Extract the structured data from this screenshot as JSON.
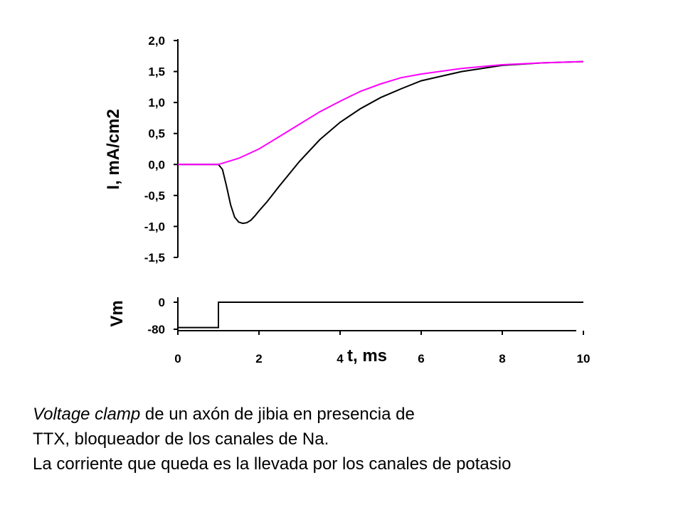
{
  "chart_data": [
    {
      "type": "line",
      "ylabel": "I, mA/cm2",
      "xlim": [
        0,
        10
      ],
      "ylim": [
        -1.5,
        2.0
      ],
      "ytick_labels": [
        "2,0",
        "1,5",
        "1,0",
        "0,5",
        "0,0",
        "-0,5",
        "-1,0",
        "-1,5"
      ],
      "ytick_values": [
        2.0,
        1.5,
        1.0,
        0.5,
        0.0,
        -0.5,
        -1.0,
        -1.5
      ],
      "grid": false,
      "series": [
        {
          "color": "#000000",
          "x": [
            0,
            1.0,
            1.1,
            1.2,
            1.3,
            1.4,
            1.5,
            1.6,
            1.7,
            1.8,
            1.9,
            2.0,
            2.2,
            2.5,
            3.0,
            3.5,
            4.0,
            4.5,
            5.0,
            5.5,
            6.0,
            7.0,
            8.0,
            9.0,
            10.0
          ],
          "y": [
            0,
            0,
            -0.08,
            -0.35,
            -0.65,
            -0.85,
            -0.93,
            -0.95,
            -0.94,
            -0.9,
            -0.83,
            -0.75,
            -0.6,
            -0.35,
            0.05,
            0.4,
            0.68,
            0.9,
            1.08,
            1.22,
            1.35,
            1.5,
            1.6,
            1.64,
            1.66
          ]
        },
        {
          "color": "#ff00ff",
          "x": [
            0,
            1.0,
            1.5,
            2.0,
            2.5,
            3.0,
            3.5,
            4.0,
            4.5,
            5.0,
            5.5,
            6.0,
            7.0,
            8.0,
            9.0,
            10.0
          ],
          "y": [
            0,
            0,
            0.1,
            0.25,
            0.45,
            0.65,
            0.85,
            1.02,
            1.18,
            1.3,
            1.4,
            1.46,
            1.55,
            1.61,
            1.64,
            1.66
          ]
        }
      ]
    },
    {
      "type": "line",
      "ylabel": "Vm",
      "xlabel": "t, ms",
      "xlim": [
        0,
        10
      ],
      "ylim": [
        -80,
        0
      ],
      "ytick_labels": [
        "0",
        "-80"
      ],
      "ytick_values": [
        0,
        -80
      ],
      "xtick_labels": [
        "0",
        "2",
        "4",
        "6",
        "8",
        "10"
      ],
      "xtick_values": [
        0,
        2,
        4,
        6,
        8,
        10
      ],
      "grid": false,
      "series": [
        {
          "color": "#000000",
          "x": [
            0,
            1.0,
            1.0,
            10.0
          ],
          "y": [
            -75,
            -75,
            0,
            0
          ]
        }
      ]
    }
  ],
  "caption": {
    "italic": "Voltage clamp",
    "line1_rest": " de un axón de jibia en presencia de",
    "line2": "TTX, bloqueador de los canales de Na.",
    "line3": "La corriente que queda es la llevada por los canales de potasio"
  }
}
